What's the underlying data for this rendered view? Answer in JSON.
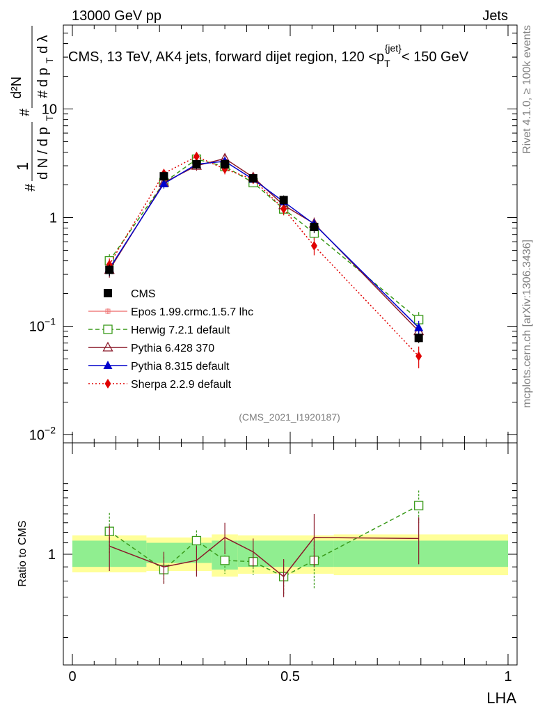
{
  "header": {
    "left": "13000 GeV pp",
    "right": "Jets"
  },
  "side_labels": {
    "rivet": "Rivet 4.1.0, ≥ 100k events",
    "mcplots": "mcplots.cern.ch [arXiv:1306.3436]"
  },
  "colors": {
    "cms": "#000000",
    "epos": "#f08080",
    "herwig": "#3a9a1a",
    "pythia6": "#8b1a2a",
    "pythia8": "#0000cc",
    "sherpa": "#e00000",
    "band_inner": "#90ee90",
    "band_outer": "#ffff99"
  },
  "chart_data": [
    {
      "type": "line",
      "panel": "main",
      "title": "CMS, 13 TeV, AK4 jets, forward dijet region, 120 <p_T^{jet}< 150 GeV",
      "title_parts": {
        "prefix": "CMS, 13 TeV, AK4 jets, forward dijet region, 120 <p",
        "sub": "T",
        "sup": "{jet}",
        "suffix": "< 150 GeV"
      },
      "ylabel": "1/(dN/dp_T) d²N/(dp_T dλ)",
      "ylabel_parts": {
        "hash": "#",
        "one": "1",
        "dN": "d N / d p",
        "T": "T",
        "d2N": "d²N",
        "dpT": "d p",
        "dlambda": "d λ"
      },
      "yscale": "log",
      "ylim": [
        0.009,
        50
      ],
      "xlim": [
        0,
        1
      ],
      "y_ticks": [
        {
          "value": 0.01,
          "label": "10",
          "exp": "−2"
        },
        {
          "value": 0.1,
          "label": "10",
          "exp": "−1"
        },
        {
          "value": 1,
          "label": "1",
          "exp": ""
        },
        {
          "value": 10,
          "label": "10",
          "exp": ""
        }
      ],
      "watermark": "(CMS_2021_I1920187)",
      "legend_position": "lower-left",
      "series": [
        {
          "name": "CMS",
          "marker": "square",
          "color_key": "cms",
          "x": [
            0.085,
            0.21,
            0.285,
            0.35,
            0.415,
            0.485,
            0.555,
            0.795
          ],
          "y": [
            0.33,
            2.4,
            3.1,
            3.1,
            2.3,
            1.45,
            0.82,
            0.078
          ],
          "err": [
            0.04,
            0.25,
            0.3,
            0.3,
            0.22,
            0.15,
            0.1,
            0.008
          ]
        },
        {
          "name": "Epos 1.99.crmc.1.5.7 lhc",
          "marker": "cross",
          "color_key": "epos",
          "x": [],
          "y": [],
          "err": []
        },
        {
          "name": "Herwig 7.2.1 default",
          "marker": "open-square",
          "dash": "6,4",
          "color_key": "herwig",
          "x": [
            0.085,
            0.21,
            0.285,
            0.35,
            0.415,
            0.485,
            0.555,
            0.795
          ],
          "y": [
            0.4,
            2.1,
            3.45,
            2.95,
            2.1,
            1.2,
            0.72,
            0.115
          ],
          "err": [
            0.06,
            0.2,
            0.3,
            0.3,
            0.2,
            0.15,
            0.1,
            0.02
          ]
        },
        {
          "name": "Pythia 6.428 370",
          "marker": "open-triangle",
          "color_key": "pythia6",
          "x": [
            0.085,
            0.21,
            0.285,
            0.35,
            0.415,
            0.485,
            0.555,
            0.795
          ],
          "y": [
            0.33,
            2.1,
            3.0,
            3.5,
            2.35,
            1.3,
            0.88,
            0.09
          ],
          "err": [
            0.05,
            0.2,
            0.3,
            0.35,
            0.25,
            0.15,
            0.12,
            0.015
          ]
        },
        {
          "name": "Pythia 8.315 default",
          "marker": "triangle",
          "color_key": "pythia8",
          "x": [
            0.085,
            0.21,
            0.285,
            0.35,
            0.415,
            0.485,
            0.555,
            0.795
          ],
          "y": [
            0.34,
            2.05,
            3.1,
            3.3,
            2.25,
            1.4,
            0.87,
            0.097
          ],
          "err": [
            0.05,
            0.2,
            0.3,
            0.3,
            0.2,
            0.15,
            0.1,
            0.015
          ]
        },
        {
          "name": "Sherpa 2.2.9 default",
          "marker": "diamond",
          "dash": "2,3",
          "color_key": "sherpa",
          "x": [
            0.085,
            0.21,
            0.285,
            0.35,
            0.415,
            0.485,
            0.555,
            0.795
          ],
          "y": [
            0.37,
            2.55,
            3.65,
            2.8,
            2.25,
            1.2,
            0.55,
            0.053
          ],
          "err": [
            0.05,
            0.2,
            0.3,
            0.3,
            0.2,
            0.15,
            0.1,
            0.012
          ]
        }
      ]
    },
    {
      "type": "line",
      "panel": "ratio",
      "ylabel": "Ratio to CMS",
      "xlabel": "LHA",
      "yscale": "log",
      "ylim": [
        0.5,
        1.8
      ],
      "xlim": [
        0,
        1
      ],
      "x_ticks": [
        {
          "value": 0,
          "label": "0"
        },
        {
          "value": 0.5,
          "label": "0.5"
        },
        {
          "value": 1,
          "label": "1"
        }
      ],
      "y_ticks": [
        {
          "value": 1,
          "label": "1"
        }
      ],
      "bands": [
        {
          "x0": 0.0,
          "x1": 0.17,
          "inner": [
            0.9,
            1.12
          ],
          "outer": [
            0.86,
            1.17
          ]
        },
        {
          "x0": 0.17,
          "x1": 0.32,
          "inner": [
            0.93,
            1.1
          ],
          "outer": [
            0.87,
            1.15
          ]
        },
        {
          "x0": 0.32,
          "x1": 0.38,
          "inner": [
            0.88,
            1.12
          ],
          "outer": [
            0.83,
            1.18
          ]
        },
        {
          "x0": 0.38,
          "x1": 0.6,
          "inner": [
            0.9,
            1.12
          ],
          "outer": [
            0.85,
            1.17
          ]
        },
        {
          "x0": 0.6,
          "x1": 1.0,
          "inner": [
            0.9,
            1.12
          ],
          "outer": [
            0.84,
            1.18
          ]
        }
      ],
      "series": [
        {
          "name": "Herwig 7.2.1 default",
          "marker": "open-square",
          "dash": "6,4",
          "color_key": "herwig",
          "x": [
            0.085,
            0.21,
            0.285,
            0.35,
            0.415,
            0.485,
            0.555,
            0.795
          ],
          "y": [
            1.21,
            0.88,
            1.12,
            0.95,
            0.94,
            0.83,
            0.95,
            1.5
          ],
          "err": [
            0.2,
            0.1,
            0.1,
            0.1,
            0.1,
            0.12,
            0.2,
            0.2
          ]
        },
        {
          "name": "Pythia 6.428 370",
          "marker": "none",
          "color_key": "pythia6",
          "x": [
            0.085,
            0.21,
            0.285,
            0.35,
            0.415,
            0.485,
            0.555,
            0.795
          ],
          "y": [
            1.07,
            0.9,
            0.95,
            1.15,
            1.02,
            0.83,
            1.15,
            1.14
          ],
          "err": [
            0.2,
            0.12,
            0.12,
            0.15,
            0.12,
            0.13,
            0.25,
            0.22
          ]
        }
      ]
    }
  ]
}
